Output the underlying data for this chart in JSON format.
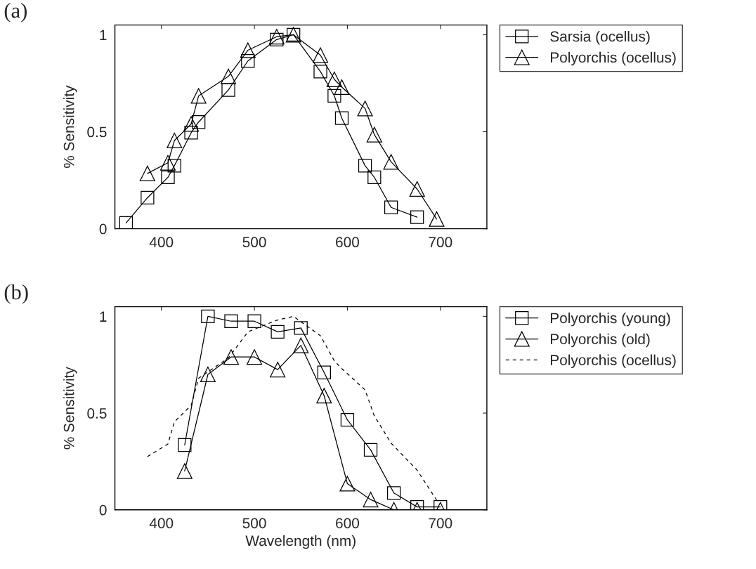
{
  "chart_data": [
    {
      "type": "line",
      "ylabel": "% Sensitivity",
      "annotations": [
        "(a)"
      ],
      "xlim": [
        350,
        750
      ],
      "xticks": [
        400,
        500,
        600,
        700
      ],
      "ylim": [
        0,
        1.05
      ],
      "yticks": [
        0,
        0.5,
        1
      ],
      "grid": false,
      "legend": "top right",
      "series": [
        {
          "name": "Sarsia (ocellus)",
          "color": "#000000",
          "marker": "square",
          "line_style": "solid",
          "x": [
            362,
            385,
            407,
            414,
            432,
            440,
            472,
            493,
            524,
            542,
            571,
            586,
            594,
            619,
            629,
            647,
            675
          ],
          "values": [
            0.03,
            0.16,
            0.265,
            0.325,
            0.495,
            0.55,
            0.715,
            0.865,
            0.975,
            1.0,
            0.81,
            0.685,
            0.57,
            0.325,
            0.265,
            0.11,
            0.06
          ]
        },
        {
          "name": "Polyorchis (ocellus)",
          "color": "#000000",
          "marker": "triangle",
          "line_style": "solid",
          "x": [
            385,
            407,
            414,
            432,
            440,
            472,
            493,
            524,
            542,
            571,
            586,
            594,
            619,
            629,
            647,
            675,
            696
          ],
          "values": [
            0.285,
            0.34,
            0.455,
            0.54,
            0.685,
            0.785,
            0.92,
            0.99,
            1.0,
            0.895,
            0.77,
            0.73,
            0.62,
            0.485,
            0.345,
            0.205,
            0.05
          ]
        }
      ]
    },
    {
      "type": "line",
      "xlabel": "Wavelength (nm)",
      "ylabel": "% Sensitivity",
      "annotations": [
        "(b)"
      ],
      "xlim": [
        350,
        750
      ],
      "xticks": [
        400,
        500,
        600,
        700
      ],
      "ylim": [
        0,
        1.05
      ],
      "yticks": [
        0,
        0.5,
        1
      ],
      "grid": false,
      "legend": "top right",
      "series": [
        {
          "name": "Polyorchis (young)",
          "color": "#000000",
          "marker": "square",
          "line_style": "solid",
          "x": [
            425,
            450,
            475,
            500,
            525,
            550,
            575,
            600,
            625,
            650,
            675,
            700
          ],
          "values": [
            0.335,
            1.0,
            0.975,
            0.975,
            0.92,
            0.94,
            0.71,
            0.465,
            0.31,
            0.087,
            0.015,
            0.015
          ]
        },
        {
          "name": "Polyorchis (old)",
          "color": "#000000",
          "marker": "triangle",
          "line_style": "solid",
          "x": [
            425,
            450,
            475,
            500,
            525,
            550,
            575,
            600,
            625,
            650,
            675,
            700
          ],
          "values": [
            0.2,
            0.7,
            0.79,
            0.79,
            0.725,
            0.85,
            0.59,
            0.135,
            0.053,
            0.0,
            0.0,
            0.0
          ]
        },
        {
          "name": "Polyorchis (ocellus)",
          "color": "#000000",
          "marker": "none",
          "line_style": "dashed",
          "x": [
            385,
            407,
            414,
            432,
            440,
            472,
            493,
            524,
            542,
            571,
            586,
            594,
            619,
            629,
            647,
            675,
            696
          ],
          "values": [
            0.275,
            0.34,
            0.455,
            0.54,
            0.68,
            0.785,
            0.92,
            0.98,
            1.0,
            0.9,
            0.77,
            0.73,
            0.62,
            0.485,
            0.345,
            0.205,
            0.05
          ]
        }
      ]
    }
  ]
}
